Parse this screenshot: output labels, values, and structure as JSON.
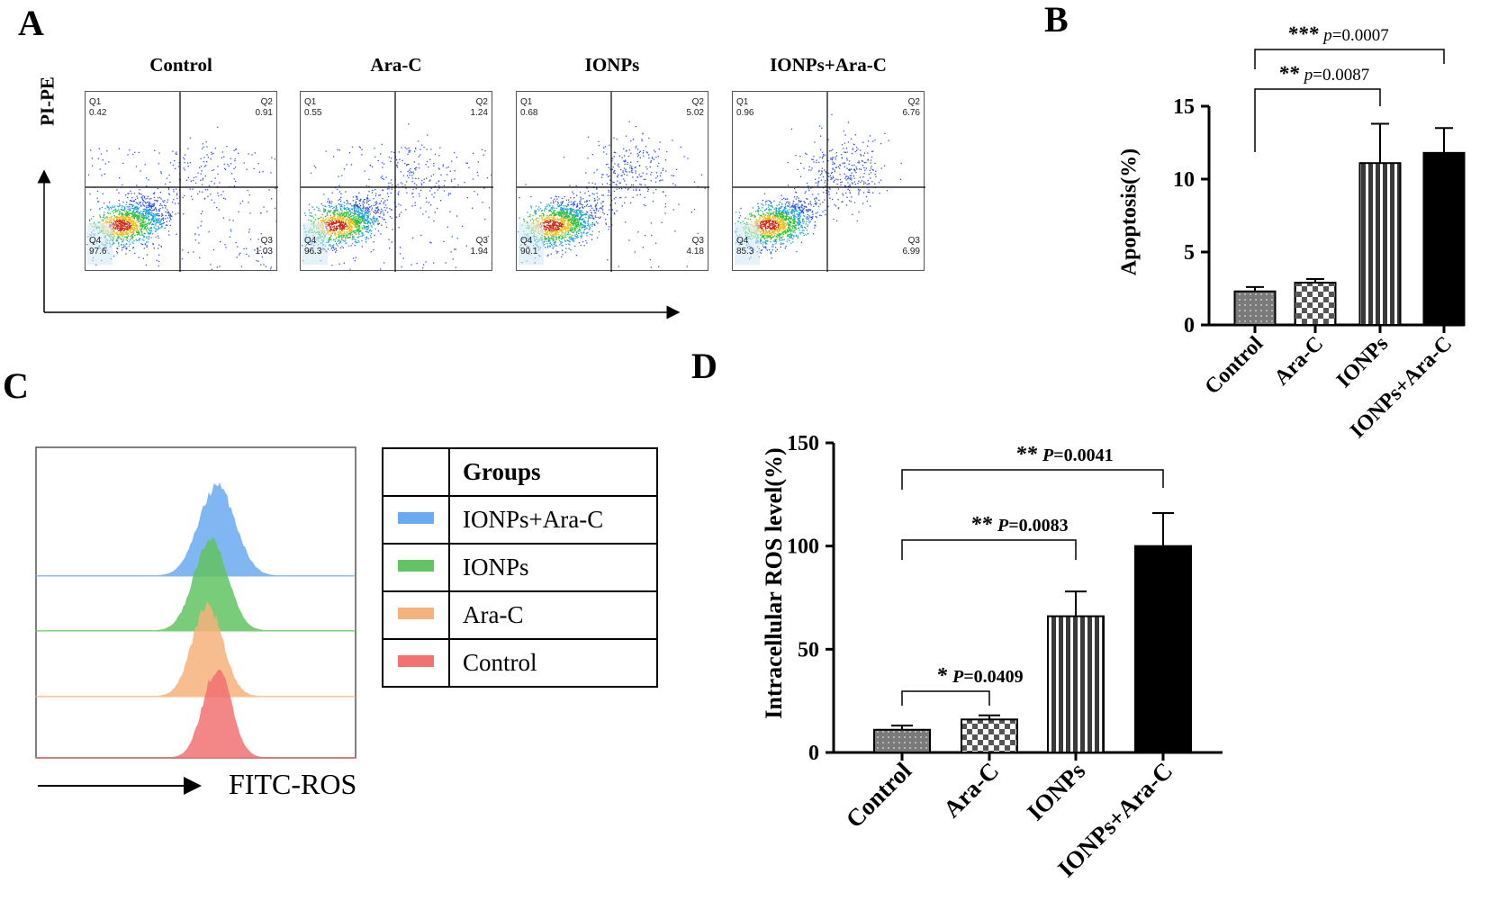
{
  "panels": {
    "a": "A",
    "b": "B",
    "c": "C",
    "d": "D"
  },
  "panel_a": {
    "y_axis_label": "PI-PE",
    "plots": [
      {
        "title": "Control",
        "q1": {
          "label": "Q1",
          "value": "0.42"
        },
        "q2": {
          "label": "Q2",
          "value": "0.91"
        },
        "q3": {
          "label": "Q3",
          "value": "1.03"
        },
        "q4": {
          "label": "Q4",
          "value": "97.6"
        },
        "spread": 0.3
      },
      {
        "title": "Ara-C",
        "q1": {
          "label": "Q1",
          "value": "0.55"
        },
        "q2": {
          "label": "Q2",
          "value": "1.24"
        },
        "q3": {
          "label": "Q3",
          "value": "1.94"
        },
        "q4": {
          "label": "Q4",
          "value": "96.3"
        },
        "spread": 0.45
      },
      {
        "title": "IONPs",
        "q1": {
          "label": "Q1",
          "value": "0.68"
        },
        "q2": {
          "label": "Q2",
          "value": "5.02"
        },
        "q3": {
          "label": "Q3",
          "value": "4.18"
        },
        "q4": {
          "label": "Q4",
          "value": "90.1"
        },
        "spread": 0.8
      },
      {
        "title": "IONPs+Ara-C",
        "q1": {
          "label": "Q1",
          "value": "0.96"
        },
        "q2": {
          "label": "Q2",
          "value": "6.76"
        },
        "q3": {
          "label": "Q3",
          "value": "6.99"
        },
        "q4": {
          "label": "Q4",
          "value": "85.3"
        },
        "spread": 1.0
      }
    ]
  },
  "chart_data": [
    {
      "id": "B",
      "type": "bar",
      "title": "",
      "ylabel": "Apoptosis(%)",
      "xlabel": "",
      "ylim": [
        0,
        15
      ],
      "yticks": [
        0,
        5,
        10,
        15
      ],
      "categories": [
        "Control",
        "Ara-C",
        "IONPs",
        "IONPs+Ara-C"
      ],
      "values": [
        2.3,
        2.9,
        11.1,
        11.8
      ],
      "errors": [
        0.3,
        0.25,
        2.7,
        1.7
      ],
      "annotations": [
        {
          "stars": "***",
          "text": "p=0.0007",
          "from": 0,
          "to": 3
        },
        {
          "stars": "**",
          "text": "p=0.0087",
          "from": 0,
          "to": 2
        }
      ]
    },
    {
      "id": "C",
      "type": "histogram",
      "xlabel": "FITC-ROS",
      "legend_title": "Groups",
      "series": [
        {
          "name": "IONPs+Ara-C",
          "color": "#6aaaf0",
          "peak": 0.55
        },
        {
          "name": "IONPs",
          "color": "#62c462",
          "peak": 0.53
        },
        {
          "name": "Ara-C",
          "color": "#f6b27c",
          "peak": 0.52
        },
        {
          "name": "Control",
          "color": "#f27171",
          "peak": 0.55
        }
      ]
    },
    {
      "id": "D",
      "type": "bar",
      "title": "",
      "ylabel": "Intracellular ROS level(%)",
      "xlabel": "",
      "ylim": [
        0,
        150
      ],
      "yticks": [
        0,
        50,
        100,
        150
      ],
      "categories": [
        "Control",
        "Ara-C",
        "IONPs",
        "IONPs+Ara-C"
      ],
      "values": [
        11,
        16,
        66,
        100
      ],
      "errors": [
        2,
        2,
        12,
        16
      ],
      "annotations": [
        {
          "stars": "**",
          "text": "P=0.0041",
          "from": 0,
          "to": 3
        },
        {
          "stars": "**",
          "text": "P=0.0083",
          "from": 0,
          "to": 2
        },
        {
          "stars": "*",
          "text": "P=0.0409",
          "from": 0,
          "to": 1
        }
      ]
    }
  ],
  "colors": {
    "bar_control": "#8a8a8a",
    "bar_arac": "#bdbdbd",
    "bar_ionps": "#3c3c3c",
    "bar_combo": "#000000"
  }
}
